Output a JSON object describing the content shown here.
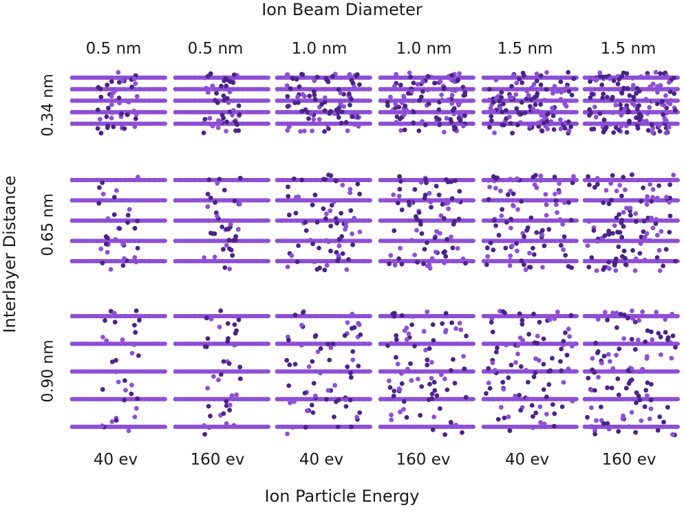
{
  "figure": {
    "top_title": "Ion Beam Diameter",
    "left_title": "Interlayer Distance",
    "bottom_title": "Ion Particle Energy"
  },
  "columns": [
    {
      "diameter": "0.5 nm",
      "energy": "40 ev"
    },
    {
      "diameter": "0.5 nm",
      "energy": "160 ev"
    },
    {
      "diameter": "1.0 nm",
      "energy": "40 ev"
    },
    {
      "diameter": "1.0 nm",
      "energy": "160 ev"
    },
    {
      "diameter": "1.5 nm",
      "energy": "40 ev"
    },
    {
      "diameter": "1.5 nm",
      "energy": "160 ev"
    }
  ],
  "rows": [
    {
      "distance": "0.34 nm"
    },
    {
      "distance": "0.65 nm"
    },
    {
      "distance": "0.90 nm"
    }
  ],
  "colors": {
    "atom": "#8e4fd6",
    "atom_damaged": "#4a2389",
    "text": "#1a1a1a",
    "background": "#ffffff"
  }
}
